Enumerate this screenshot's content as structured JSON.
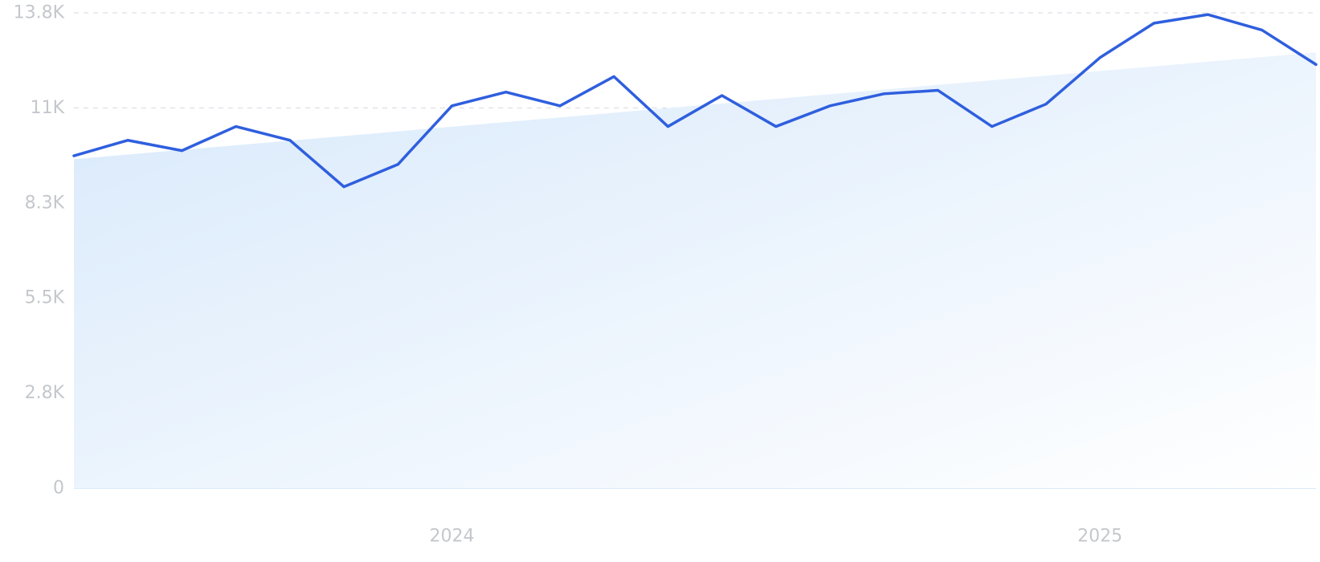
{
  "chart_data": {
    "type": "line",
    "title": "",
    "xlabel": "",
    "ylabel": "",
    "ylim": [
      0,
      13800
    ],
    "y_ticks": [
      {
        "value": 0,
        "label": "0"
      },
      {
        "value": 2760,
        "label": "2.8K"
      },
      {
        "value": 5520,
        "label": "5.5K"
      },
      {
        "value": 8280,
        "label": "8.3K"
      },
      {
        "value": 11040,
        "label": "11K"
      },
      {
        "value": 13800,
        "label": "13.8K"
      }
    ],
    "x_ticks": [
      {
        "value": 7,
        "label": "2024"
      },
      {
        "value": 19,
        "label": "2025"
      }
    ],
    "xlim": [
      0,
      23
    ],
    "grid": true,
    "legend": "none",
    "series": [
      {
        "color": "#2f5fde",
        "x": [
          0,
          1,
          2,
          3,
          4,
          5,
          6,
          7,
          8,
          9,
          10,
          11,
          12,
          13,
          14,
          15,
          16,
          17,
          18,
          19,
          20,
          21,
          22,
          23
        ],
        "values": [
          9650,
          10100,
          9800,
          10500,
          10100,
          8750,
          9400,
          11100,
          11500,
          11100,
          11950,
          10500,
          11400,
          10500,
          11100,
          11450,
          11550,
          10500,
          11150,
          12500,
          13500,
          13750,
          13300,
          12300
        ]
      }
    ],
    "trend_area": {
      "start": 9550,
      "end": 12650,
      "color_start": "#d8e9fb",
      "color_end": "#ffffff"
    }
  }
}
